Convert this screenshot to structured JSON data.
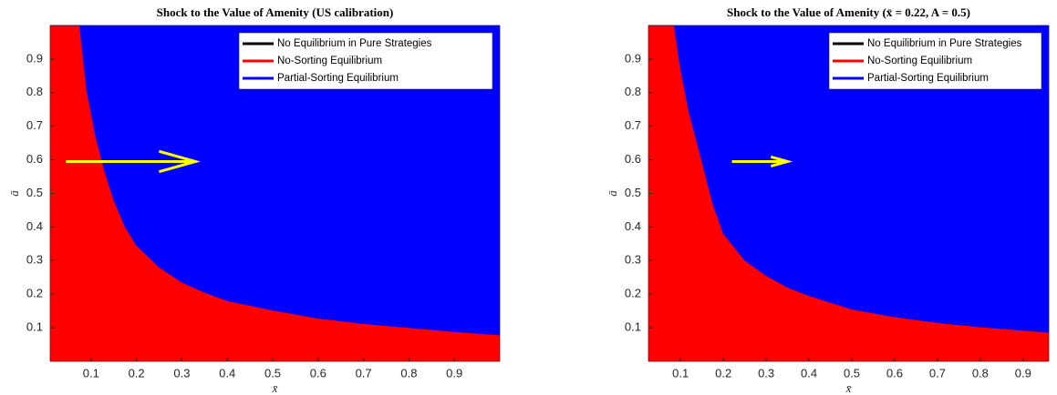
{
  "chart_data": [
    {
      "type": "area",
      "title": "Shock to the Value of Amenity (US calibration)",
      "x_label": "x̄",
      "y_label": "ā",
      "x": [
        0.075,
        0.09,
        0.11,
        0.13,
        0.15,
        0.175,
        0.2,
        0.25,
        0.3,
        0.35,
        0.4,
        0.5,
        0.6,
        0.7,
        0.8,
        0.9,
        1.0
      ],
      "series": [
        {
          "name": "No Equilibrium in Pure Strategies",
          "color": "#000000",
          "values": [
            null,
            null,
            null,
            null,
            null,
            null,
            null,
            null,
            null,
            null,
            null,
            null,
            null,
            null,
            null,
            null,
            null
          ]
        },
        {
          "name": "No-Sorting Equilibrium",
          "color": "#ff0000",
          "values": [
            1.0,
            0.81,
            0.67,
            0.565,
            0.48,
            0.4,
            0.345,
            0.28,
            0.235,
            0.205,
            0.18,
            0.152,
            0.128,
            0.112,
            0.1,
            0.088,
            0.078
          ]
        },
        {
          "name": "Partial-Sorting Equilibrium",
          "color": "#0000ff",
          "values": [
            1.0,
            0.81,
            0.67,
            0.565,
            0.48,
            0.4,
            0.345,
            0.28,
            0.235,
            0.205,
            0.18,
            0.152,
            0.128,
            0.112,
            0.1,
            0.088,
            0.078
          ]
        }
      ],
      "arrow": {
        "x": [
          0.045,
          0.33
        ],
        "y": 0.595,
        "color": "#ffff00"
      },
      "xlim": [
        0.01,
        1.0
      ],
      "ylim": [
        0,
        1.0
      ],
      "xticks": [
        0.1,
        0.2,
        0.3,
        0.4,
        0.5,
        0.6,
        0.7,
        0.8,
        0.9
      ],
      "yticks": [
        0.1,
        0.2,
        0.3,
        0.4,
        0.5,
        0.6,
        0.7,
        0.8,
        0.9
      ],
      "legend": "upper right"
    },
    {
      "type": "area",
      "title": "Shock to the Value of Amenity (x̄ = 0.22, A = 0.5)",
      "x_label": "x̄",
      "y_label": "ā",
      "x": [
        0.085,
        0.1,
        0.12,
        0.15,
        0.175,
        0.2,
        0.25,
        0.3,
        0.35,
        0.4,
        0.5,
        0.6,
        0.7,
        0.8,
        0.9,
        0.96
      ],
      "series": [
        {
          "name": "No Equilibrium in Pure Strategies",
          "color": "#000000",
          "values": [
            null,
            null,
            null,
            null,
            null,
            null,
            null,
            null,
            null,
            null,
            null,
            null,
            null,
            null,
            null,
            null
          ]
        },
        {
          "name": "No-Sorting Equilibrium",
          "color": "#ff0000",
          "values": [
            1.0,
            0.87,
            0.74,
            0.595,
            0.47,
            0.38,
            0.3,
            0.255,
            0.22,
            0.195,
            0.155,
            0.132,
            0.115,
            0.102,
            0.092,
            0.086
          ]
        },
        {
          "name": "Partial-Sorting Equilibrium",
          "color": "#0000ff",
          "values": [
            1.0,
            0.87,
            0.74,
            0.595,
            0.47,
            0.38,
            0.3,
            0.255,
            0.22,
            0.195,
            0.155,
            0.132,
            0.115,
            0.102,
            0.092,
            0.086
          ]
        }
      ],
      "arrow": {
        "x": [
          0.22,
          0.35
        ],
        "y": 0.595,
        "color": "#ffff00"
      },
      "xlim": [
        0.025,
        0.96
      ],
      "ylim": [
        0,
        1.0
      ],
      "xticks": [
        0.1,
        0.2,
        0.3,
        0.4,
        0.5,
        0.6,
        0.7,
        0.8,
        0.9
      ],
      "yticks": [
        0.1,
        0.2,
        0.3,
        0.4,
        0.5,
        0.6,
        0.7,
        0.8,
        0.9
      ],
      "legend": "upper right"
    }
  ]
}
